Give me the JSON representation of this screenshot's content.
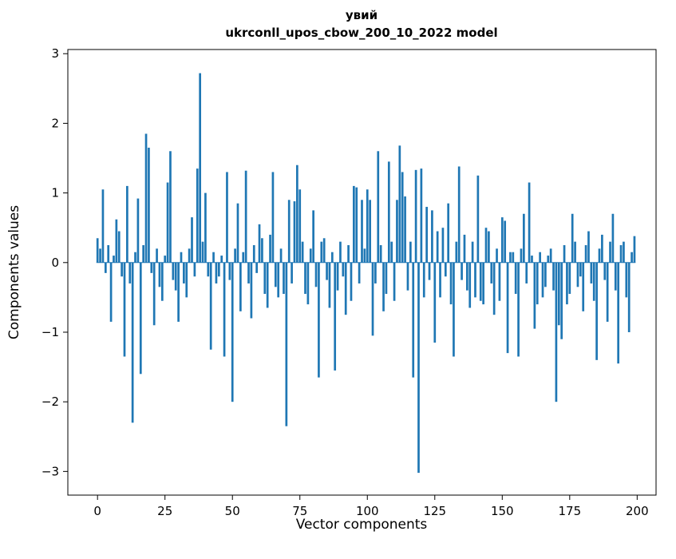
{
  "figure": {
    "background": "#ffffff"
  },
  "chart_data": {
    "type": "bar",
    "title": "увий",
    "subtitle": "ukrconll_upos_cbow_200_10_2022 model",
    "xlabel": "Vector components",
    "ylabel": "Components values",
    "bar_color": "#1f77b4",
    "grid": false,
    "legend": "none",
    "xlim": [
      -11,
      207
    ],
    "ylim": [
      -3.34,
      3.06
    ],
    "xticks": [
      0,
      25,
      50,
      75,
      100,
      125,
      150,
      175,
      200
    ],
    "yticks": [
      -3,
      -2,
      -1,
      0,
      1,
      2,
      3
    ],
    "bar_width": 0.8,
    "values": [
      0.35,
      0.2,
      1.05,
      -0.15,
      0.25,
      -0.85,
      0.1,
      0.62,
      0.45,
      -0.2,
      -1.35,
      1.1,
      -0.3,
      -2.3,
      0.15,
      0.92,
      -1.6,
      0.25,
      1.85,
      1.65,
      -0.15,
      -0.9,
      0.2,
      -0.35,
      -0.55,
      0.1,
      1.15,
      1.6,
      -0.25,
      -0.4,
      -0.85,
      0.15,
      -0.3,
      -0.5,
      0.2,
      0.65,
      -0.2,
      1.35,
      2.72,
      0.3,
      1.0,
      -0.2,
      -1.25,
      0.15,
      -0.3,
      -0.2,
      0.1,
      -1.35,
      1.3,
      -0.25,
      -2.0,
      0.2,
      0.85,
      -0.7,
      0.15,
      1.32,
      -0.3,
      -0.8,
      0.25,
      -0.15,
      0.55,
      0.35,
      -0.45,
      -0.65,
      0.4,
      1.3,
      -0.35,
      -0.5,
      0.2,
      -0.45,
      -2.35,
      0.9,
      -0.3,
      0.88,
      1.4,
      1.05,
      0.3,
      -0.45,
      -0.6,
      0.2,
      0.75,
      -0.35,
      -1.65,
      0.3,
      0.35,
      -0.25,
      -0.65,
      0.15,
      -1.55,
      -0.4,
      0.3,
      -0.2,
      -0.75,
      0.25,
      -0.55,
      1.1,
      1.08,
      -0.3,
      0.9,
      0.2,
      1.05,
      0.9,
      -1.05,
      -0.3,
      1.6,
      0.25,
      -0.7,
      -0.45,
      1.45,
      0.3,
      -0.55,
      0.9,
      1.68,
      1.3,
      0.95,
      -0.4,
      0.3,
      -1.65,
      1.33,
      -3.02,
      1.35,
      -0.5,
      0.8,
      -0.25,
      0.75,
      -1.15,
      0.45,
      -0.5,
      0.5,
      -0.2,
      0.85,
      -0.6,
      -1.35,
      0.3,
      1.38,
      -0.25,
      0.4,
      -0.4,
      -0.65,
      0.3,
      -0.5,
      1.25,
      -0.55,
      -0.6,
      0.5,
      0.45,
      -0.3,
      -0.75,
      0.2,
      -0.55,
      0.65,
      0.6,
      -1.3,
      0.15,
      0.15,
      -0.45,
      -1.35,
      0.2,
      0.7,
      -0.3,
      1.15,
      0.1,
      -0.95,
      -0.6,
      0.15,
      -0.5,
      -0.35,
      0.1,
      0.2,
      -0.4,
      -2.0,
      -0.9,
      -1.1,
      0.25,
      -0.6,
      -0.45,
      0.7,
      0.3,
      -0.35,
      -0.2,
      -0.7,
      0.25,
      0.45,
      -0.3,
      -0.55,
      -1.4,
      0.2,
      0.4,
      -0.25,
      -0.85,
      0.3,
      0.7,
      -0.4,
      -1.45,
      0.25,
      0.3,
      -0.5,
      -1.0,
      0.15,
      0.38
    ]
  }
}
